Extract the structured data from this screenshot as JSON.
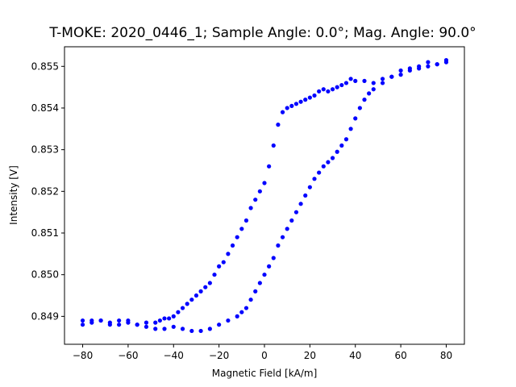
{
  "chart_data": {
    "type": "scatter",
    "title": "T-MOKE: 2020_0446_1; Sample Angle: 0.0°; Mag. Angle: 90.0°",
    "xlabel": "Magnetic Field [kA/m]",
    "ylabel": "Intensity [V]",
    "xlim": [
      -88,
      88
    ],
    "ylim": [
      0.84833,
      0.85547
    ],
    "x_ticks": [
      -80,
      -60,
      -40,
      -20,
      0,
      20,
      40,
      60,
      80
    ],
    "x_tick_labels": [
      "−80",
      "−60",
      "−40",
      "−20",
      "0",
      "20",
      "40",
      "60",
      "80"
    ],
    "y_ticks": [
      0.849,
      0.85,
      0.851,
      0.852,
      0.853,
      0.854,
      0.855
    ],
    "y_tick_labels": [
      "0.849",
      "0.850",
      "0.851",
      "0.852",
      "0.853",
      "0.854",
      "0.855"
    ],
    "grid": false,
    "marker_color": "#0000ff",
    "series": [
      {
        "branch": "descending",
        "x": [
          80,
          76,
          72,
          68,
          64,
          60,
          56,
          52,
          48,
          44,
          40,
          38,
          36,
          34,
          32,
          30,
          28,
          26,
          24,
          22,
          20,
          18,
          16,
          14,
          12,
          10,
          8,
          6,
          4,
          2,
          0,
          -2,
          -4,
          -6,
          -8,
          -10,
          -12,
          -14,
          -16,
          -18,
          -20,
          -22,
          -24,
          -26,
          -28,
          -30,
          -32,
          -34,
          -36,
          -38,
          -40,
          -42,
          -44,
          -46,
          -48,
          -52,
          -56,
          -60,
          -64,
          -68,
          -72,
          -76,
          -80
        ],
        "y": [
          0.85515,
          0.85505,
          0.8551,
          0.855,
          0.85495,
          0.8549,
          0.85475,
          0.8547,
          0.8546,
          0.85465,
          0.85465,
          0.8547,
          0.8546,
          0.85455,
          0.8545,
          0.85445,
          0.8544,
          0.85445,
          0.8544,
          0.8543,
          0.85425,
          0.8542,
          0.85415,
          0.8541,
          0.85405,
          0.854,
          0.8539,
          0.8536,
          0.8531,
          0.8526,
          0.8522,
          0.852,
          0.8518,
          0.8516,
          0.8513,
          0.8511,
          0.8509,
          0.8507,
          0.8505,
          0.8503,
          0.8502,
          0.85,
          0.8498,
          0.8497,
          0.8496,
          0.8495,
          0.8494,
          0.8493,
          0.8492,
          0.8491,
          0.849,
          0.84895,
          0.84895,
          0.8489,
          0.84885,
          0.84885,
          0.8488,
          0.8489,
          0.8489,
          0.84885,
          0.8489,
          0.8489,
          0.8489
        ]
      },
      {
        "branch": "ascending",
        "x": [
          -80,
          -76,
          -72,
          -68,
          -64,
          -60,
          -56,
          -52,
          -48,
          -44,
          -40,
          -36,
          -32,
          -28,
          -24,
          -20,
          -16,
          -12,
          -10,
          -8,
          -6,
          -4,
          -2,
          0,
          2,
          4,
          6,
          8,
          10,
          12,
          14,
          16,
          18,
          20,
          22,
          24,
          26,
          28,
          30,
          32,
          34,
          36,
          38,
          40,
          42,
          44,
          46,
          48,
          52,
          56,
          60,
          64,
          68,
          72,
          76,
          80
        ],
        "y": [
          0.8488,
          0.84885,
          0.8489,
          0.8488,
          0.8488,
          0.84885,
          0.8488,
          0.84875,
          0.8487,
          0.8487,
          0.84875,
          0.8487,
          0.84865,
          0.84865,
          0.8487,
          0.8488,
          0.8489,
          0.849,
          0.8491,
          0.8492,
          0.8494,
          0.8496,
          0.8498,
          0.85,
          0.8502,
          0.8504,
          0.8507,
          0.8509,
          0.8511,
          0.8513,
          0.8515,
          0.8517,
          0.8519,
          0.8521,
          0.8523,
          0.85245,
          0.8526,
          0.8527,
          0.8528,
          0.85295,
          0.8531,
          0.85325,
          0.8535,
          0.85375,
          0.854,
          0.8542,
          0.85435,
          0.85445,
          0.8546,
          0.85475,
          0.8548,
          0.8549,
          0.85495,
          0.855,
          0.85505,
          0.8551
        ]
      }
    ]
  }
}
